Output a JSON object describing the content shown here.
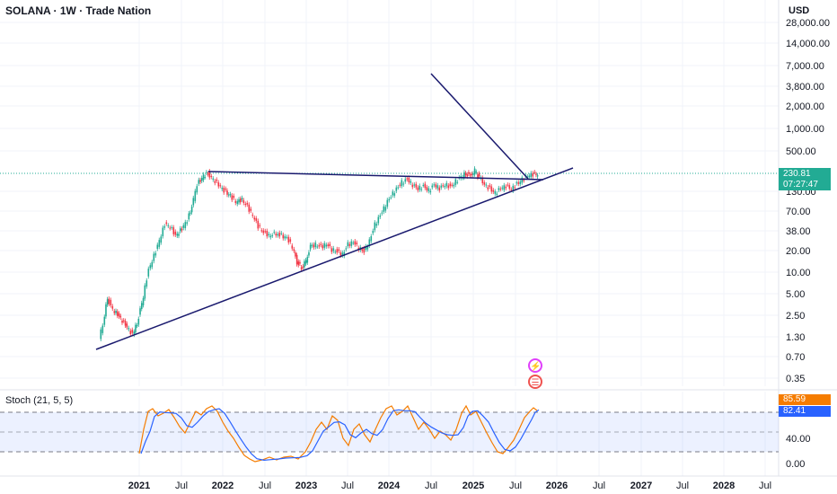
{
  "header": {
    "title": "SOLANA · 1W · Trade Nation",
    "currency": "USD"
  },
  "price_scale": {
    "labels": [
      "28,000.00",
      "14,000.00",
      "7,000.00",
      "3,800.00",
      "2,000.00",
      "1,000.00",
      "500.00",
      "130.00",
      "70.00",
      "38.00",
      "20.00",
      "10.00",
      "5.00",
      "2.50",
      "1.30",
      "0.70",
      "0.35"
    ],
    "values": [
      28000,
      14000,
      7000,
      3800,
      2000,
      1000,
      500,
      130,
      70,
      38,
      20,
      10,
      5,
      2.5,
      1.3,
      0.7,
      0.35
    ]
  },
  "last_price": {
    "value": "230.81",
    "countdown": "07:27:47",
    "color": "#22ab94"
  },
  "stoch": {
    "label": "Stoch (21, 5, 5)",
    "k_value": "85.59",
    "d_value": "82.41",
    "scale_labels": [
      "40.00",
      "0.00"
    ],
    "k_color": "#f57c00",
    "d_color": "#2962ff"
  },
  "time_axis": {
    "labels": [
      "2021",
      "Jul",
      "2022",
      "Jul",
      "2023",
      "Jul",
      "2024",
      "Jul",
      "2025",
      "Jul",
      "2026",
      "Jul",
      "2027",
      "Jul",
      "2028",
      "Jul"
    ]
  },
  "events": [
    {
      "icon": "dividend-icon",
      "glyph": "⚡"
    },
    {
      "icon": "us-flag-icon",
      "glyph": "☰"
    }
  ],
  "colors": {
    "up": "#22ab94",
    "down": "#f23645",
    "trendline": "#1a1a6e"
  }
}
